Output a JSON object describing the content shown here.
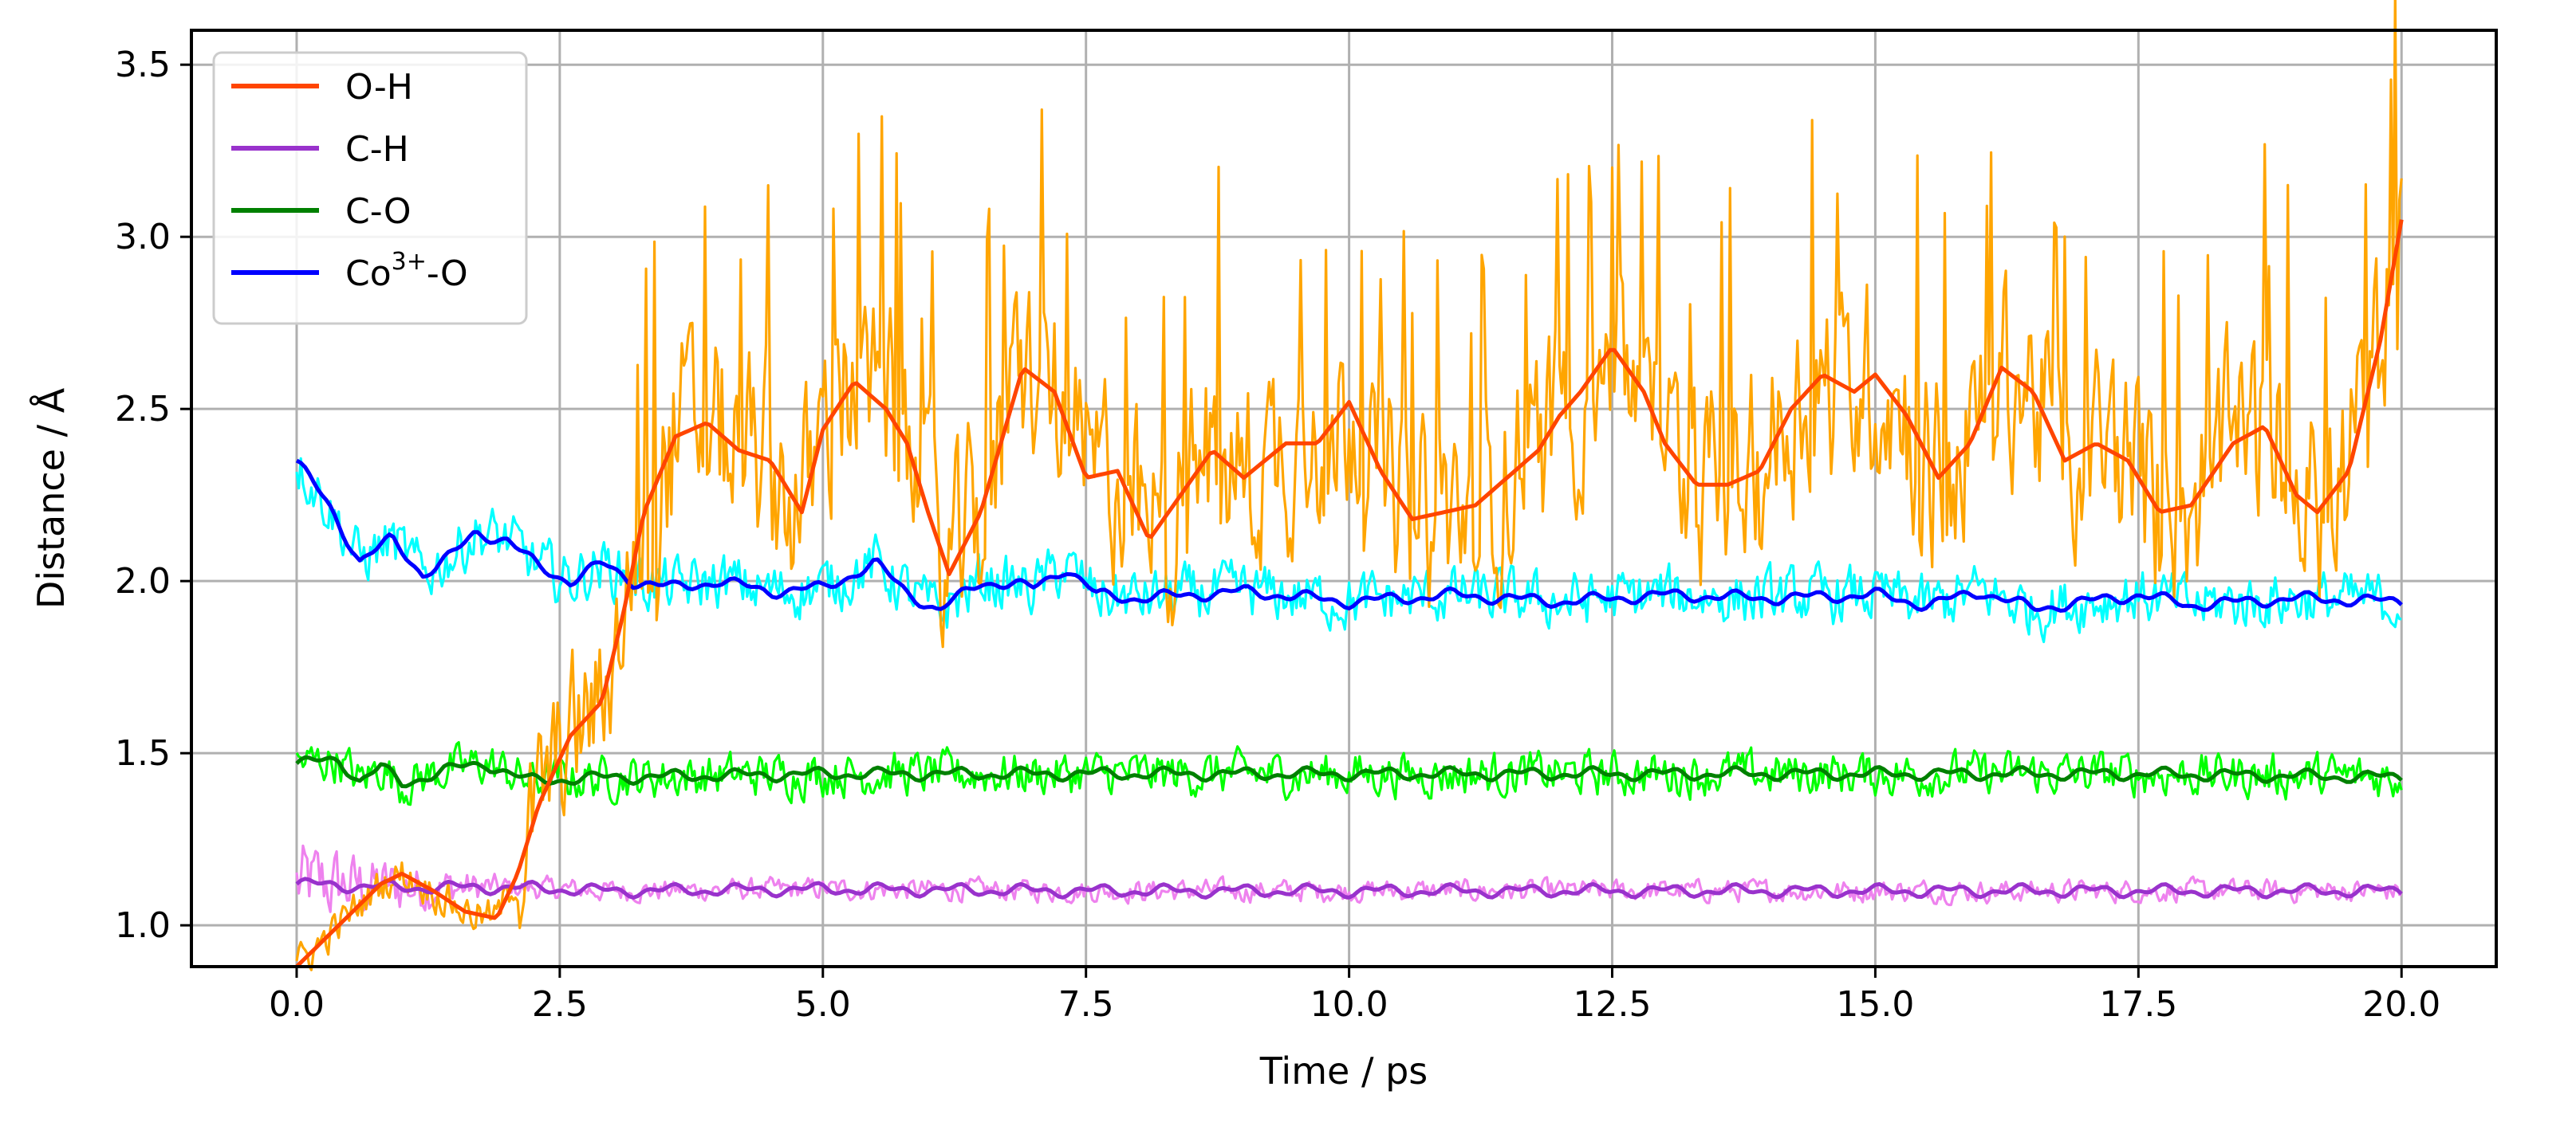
{
  "chart_data": {
    "type": "line",
    "xlabel": "Time / ps",
    "ylabel": "Distance / Å",
    "xlim": [
      -1.0,
      20.9
    ],
    "ylim": [
      0.88,
      3.6
    ],
    "xticks": [
      0.0,
      2.5,
      5.0,
      7.5,
      10.0,
      12.5,
      15.0,
      17.5,
      20.0
    ],
    "xtick_labels": [
      "0.0",
      "2.5",
      "5.0",
      "7.5",
      "10.0",
      "12.5",
      "15.0",
      "17.5",
      "20.0"
    ],
    "yticks": [
      1.0,
      1.5,
      2.0,
      2.5,
      3.0,
      3.5
    ],
    "ytick_labels": [
      "1.0",
      "1.5",
      "2.0",
      "2.5",
      "3.0",
      "3.5"
    ],
    "grid": true,
    "legend_position": "top-left",
    "series": [
      {
        "name": "O-H",
        "legend_label": "O-H",
        "raw_color": "#ffa500",
        "smooth_color": "#ff4500",
        "noise": 0.32,
        "smooth": [
          [
            0.0,
            0.88
          ],
          [
            0.4,
            1.0
          ],
          [
            0.8,
            1.12
          ],
          [
            1.0,
            1.15
          ],
          [
            1.3,
            1.1
          ],
          [
            1.6,
            1.04
          ],
          [
            1.9,
            1.02
          ],
          [
            2.1,
            1.15
          ],
          [
            2.3,
            1.35
          ],
          [
            2.6,
            1.55
          ],
          [
            2.9,
            1.65
          ],
          [
            3.1,
            1.9
          ],
          [
            3.3,
            2.2
          ],
          [
            3.6,
            2.42
          ],
          [
            3.9,
            2.46
          ],
          [
            4.2,
            2.38
          ],
          [
            4.5,
            2.35
          ],
          [
            4.8,
            2.2
          ],
          [
            5.0,
            2.44
          ],
          [
            5.3,
            2.58
          ],
          [
            5.6,
            2.5
          ],
          [
            5.8,
            2.4
          ],
          [
            6.0,
            2.2
          ],
          [
            6.2,
            2.02
          ],
          [
            6.5,
            2.2
          ],
          [
            6.9,
            2.62
          ],
          [
            7.2,
            2.55
          ],
          [
            7.5,
            2.3
          ],
          [
            7.8,
            2.32
          ],
          [
            8.1,
            2.12
          ],
          [
            8.4,
            2.25
          ],
          [
            8.7,
            2.38
          ],
          [
            9.0,
            2.3
          ],
          [
            9.4,
            2.4
          ],
          [
            9.7,
            2.4
          ],
          [
            10.0,
            2.52
          ],
          [
            10.3,
            2.32
          ],
          [
            10.6,
            2.18
          ],
          [
            10.9,
            2.2
          ],
          [
            11.2,
            2.22
          ],
          [
            11.5,
            2.3
          ],
          [
            11.8,
            2.38
          ],
          [
            12.0,
            2.48
          ],
          [
            12.2,
            2.55
          ],
          [
            12.5,
            2.68
          ],
          [
            12.8,
            2.55
          ],
          [
            13.0,
            2.4
          ],
          [
            13.3,
            2.28
          ],
          [
            13.6,
            2.28
          ],
          [
            13.9,
            2.32
          ],
          [
            14.2,
            2.5
          ],
          [
            14.5,
            2.6
          ],
          [
            14.8,
            2.55
          ],
          [
            15.0,
            2.6
          ],
          [
            15.3,
            2.48
          ],
          [
            15.6,
            2.3
          ],
          [
            15.9,
            2.4
          ],
          [
            16.2,
            2.62
          ],
          [
            16.5,
            2.55
          ],
          [
            16.8,
            2.35
          ],
          [
            17.1,
            2.4
          ],
          [
            17.4,
            2.35
          ],
          [
            17.7,
            2.2
          ],
          [
            18.0,
            2.22
          ],
          [
            18.4,
            2.4
          ],
          [
            18.7,
            2.45
          ],
          [
            19.0,
            2.25
          ],
          [
            19.2,
            2.2
          ],
          [
            19.5,
            2.32
          ],
          [
            19.8,
            2.7
          ],
          [
            20.0,
            3.05
          ]
        ]
      },
      {
        "name": "C-H",
        "legend_label": "C-H",
        "raw_color": "#ee82ee",
        "smooth_color": "#9932cc",
        "noise": 0.035,
        "smooth": [
          [
            0.0,
            1.12
          ],
          [
            1.0,
            1.11
          ],
          [
            2.0,
            1.11
          ],
          [
            3.0,
            1.1
          ],
          [
            5.0,
            1.105
          ],
          [
            7.5,
            1.1
          ],
          [
            10.0,
            1.1
          ],
          [
            12.5,
            1.1
          ],
          [
            15.0,
            1.1
          ],
          [
            17.5,
            1.1
          ],
          [
            20.0,
            1.1
          ]
        ]
      },
      {
        "name": "C-O",
        "legend_label": "C-O",
        "raw_color": "#00ff00",
        "smooth_color": "#008000",
        "noise": 0.07,
        "smooth": [
          [
            0.0,
            1.47
          ],
          [
            0.4,
            1.48
          ],
          [
            0.6,
            1.42
          ],
          [
            0.8,
            1.46
          ],
          [
            1.0,
            1.41
          ],
          [
            1.4,
            1.45
          ],
          [
            1.8,
            1.47
          ],
          [
            2.2,
            1.42
          ],
          [
            3.0,
            1.43
          ],
          [
            5.0,
            1.44
          ],
          [
            7.5,
            1.44
          ],
          [
            10.0,
            1.44
          ],
          [
            12.5,
            1.44
          ],
          [
            15.0,
            1.44
          ],
          [
            17.5,
            1.44
          ],
          [
            20.0,
            1.43
          ]
        ]
      },
      {
        "name": "Co3+-O",
        "legend_label": "Co",
        "legend_sup": "3+",
        "legend_suffix": "-O",
        "raw_color": "#00ffff",
        "smooth_color": "#0000ff",
        "noise": 0.09,
        "smooth": [
          [
            0.0,
            2.35
          ],
          [
            0.3,
            2.22
          ],
          [
            0.6,
            2.06
          ],
          [
            0.9,
            2.12
          ],
          [
            1.2,
            2.02
          ],
          [
            1.5,
            2.08
          ],
          [
            1.7,
            2.14
          ],
          [
            2.0,
            2.12
          ],
          [
            2.3,
            2.04
          ],
          [
            2.6,
            2.0
          ],
          [
            2.9,
            2.05
          ],
          [
            3.2,
            2.0
          ],
          [
            3.6,
            1.98
          ],
          [
            4.0,
            2.0
          ],
          [
            4.5,
            1.97
          ],
          [
            5.0,
            1.98
          ],
          [
            5.5,
            2.05
          ],
          [
            5.8,
            1.97
          ],
          [
            6.1,
            1.91
          ],
          [
            6.5,
            2.0
          ],
          [
            7.0,
            1.98
          ],
          [
            7.3,
            2.04
          ],
          [
            7.6,
            1.96
          ],
          [
            8.0,
            1.95
          ],
          [
            9.0,
            1.97
          ],
          [
            10.0,
            1.94
          ],
          [
            11.0,
            1.96
          ],
          [
            12.0,
            1.94
          ],
          [
            12.5,
            1.95
          ],
          [
            13.0,
            1.96
          ],
          [
            14.0,
            1.95
          ],
          [
            15.0,
            1.96
          ],
          [
            15.5,
            1.93
          ],
          [
            16.0,
            1.97
          ],
          [
            16.5,
            1.92
          ],
          [
            17.0,
            1.94
          ],
          [
            17.5,
            1.96
          ],
          [
            18.0,
            1.93
          ],
          [
            19.0,
            1.95
          ],
          [
            20.0,
            1.94
          ]
        ]
      }
    ]
  }
}
